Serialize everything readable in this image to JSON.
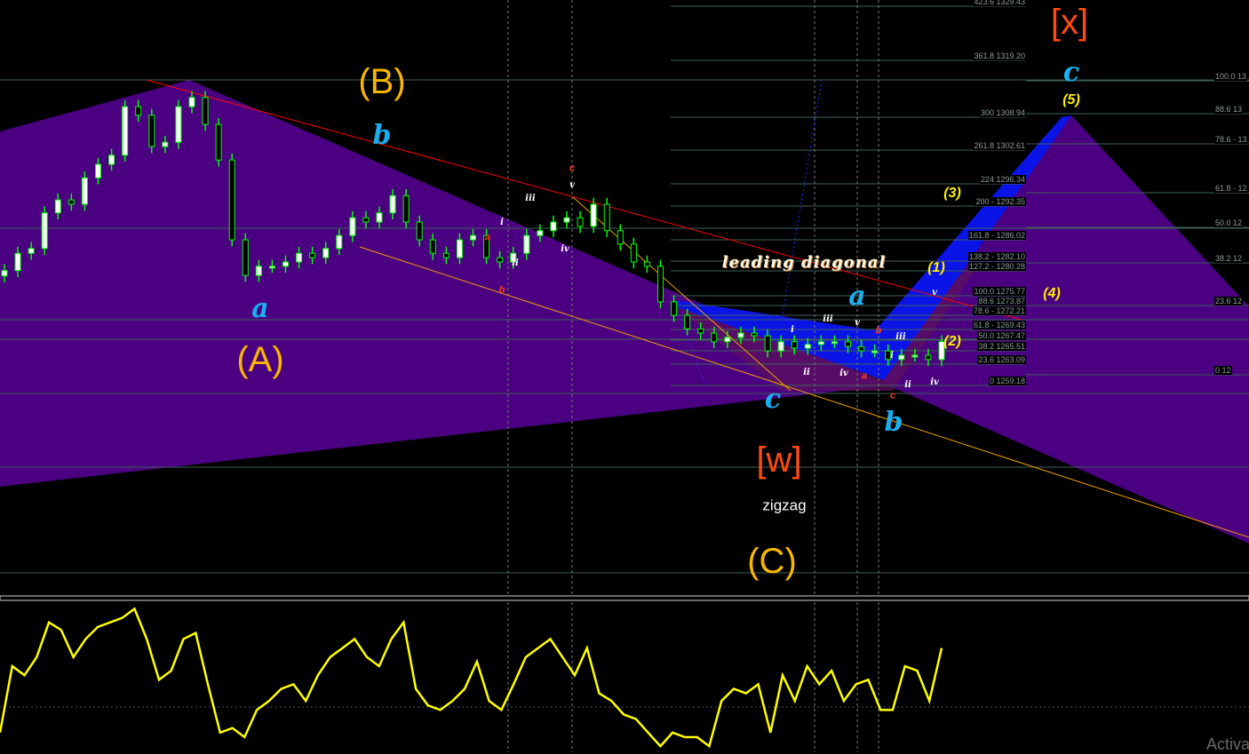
{
  "chart_data": {
    "type": "candlestick",
    "title": "",
    "price_series_closes": [
      1279.5,
      1282.7,
      1283.6,
      1290.2,
      1292.6,
      1291.8,
      1296.7,
      1299.2,
      1300.9,
      1309.9,
      1308.3,
      1302.5,
      1303.3,
      1309.9,
      1311.6,
      1306.6,
      1300.0,
      1285.2,
      1278.6,
      1280.3,
      1280.3,
      1281.1,
      1282.7,
      1281.9,
      1283.6,
      1286.0,
      1289.3,
      1288.5,
      1290.2,
      1293.4,
      1288.5,
      1285.2,
      1282.7,
      1281.9,
      1285.2,
      1286.0,
      1281.9,
      1281.1,
      1282.7,
      1286.0,
      1286.9,
      1288.5,
      1289.3,
      1287.7,
      1291.8,
      1286.9,
      1284.4,
      1281.1,
      1280.3,
      1273.7,
      1271.2,
      1268.7,
      1267.9,
      1266.3,
      1267.1,
      1267.9,
      1267.4,
      1264.6,
      1266.3,
      1265.1,
      1265.8,
      1266.3,
      1266.3,
      1265.4,
      1264.6,
      1264.6,
      1263.0,
      1263.8,
      1263.8,
      1263.0,
      1266.3
    ],
    "oscillator": {
      "values": [
        13,
        57,
        51,
        63,
        86,
        81,
        63,
        75,
        83,
        86,
        89,
        95,
        75,
        48,
        54,
        75,
        79,
        45,
        13,
        16,
        10,
        28,
        34,
        42,
        45,
        34,
        51,
        63,
        69,
        75,
        63,
        57,
        75,
        86,
        42,
        31,
        28,
        34,
        42,
        60,
        34,
        28,
        45,
        63,
        69,
        75,
        63,
        51,
        69,
        39,
        34,
        25,
        22,
        13,
        4,
        13,
        10,
        10,
        4,
        34,
        42,
        39,
        45,
        13,
        51,
        34,
        57,
        45,
        54,
        34,
        45,
        48,
        28,
        28,
        57,
        54,
        34,
        69
      ],
      "level": 30,
      "range": [
        0,
        100
      ],
      "color": "#ffff00"
    },
    "fib_left": [
      "423.6 1329.43",
      "361.8 1319.20",
      "300 1308.94",
      "261.8 1302.61",
      "224 1296.34",
      "200 - 1292.35",
      "161.8 -  1286.02",
      "138.2 - 1282.10",
      "127.2 - 1280.28",
      "100.0 1275.77",
      "88.6 1273.87",
      "78.6 - 1272.21",
      "61.8 - 1269.43",
      "50.0 1267.47",
      "38.2 1265.51",
      "23.6 1263.09",
      "0 1259.18"
    ],
    "fib_right": [
      "100.0 13",
      "88.6 13",
      "78.6 - 13",
      "61.8 - 12",
      "50.0 12",
      "38.2 12",
      "23.6 12",
      "0 12"
    ],
    "colors": {
      "bull_candle": "#ffffff",
      "bear_candle": "#000000",
      "wick": "#00ff00",
      "zone_purple": "#4b0082",
      "zone_blue": "#0a14e6",
      "trend_red": "#ff0000",
      "channel_orange": "#f0a000",
      "fib_line": "#3f5f5a"
    }
  },
  "labels": {
    "B": "(B)",
    "A": "(A)",
    "C": "(C)",
    "b_top": "b",
    "a_left": "a",
    "c_mid": "c",
    "b_bottom": "b",
    "a_mid": "a",
    "c_top": "c",
    "x_deg": "[x]",
    "w_deg": "[w]",
    "zigzag": "zigzag",
    "leading_diagonal": "leading diagonal",
    "w1": "(1)",
    "w2": "(2)",
    "w3": "(3)",
    "w4": "(4)",
    "w5": "(5)",
    "sm": [
      "iii",
      "v",
      "i",
      "iv",
      "ii",
      "i",
      "iii",
      "v",
      "iii",
      "i",
      "ii",
      "iv",
      "ii",
      "iv",
      "v"
    ],
    "red": [
      "c",
      "a",
      "b",
      "b",
      "a",
      "c"
    ]
  },
  "watermark": "Activa"
}
